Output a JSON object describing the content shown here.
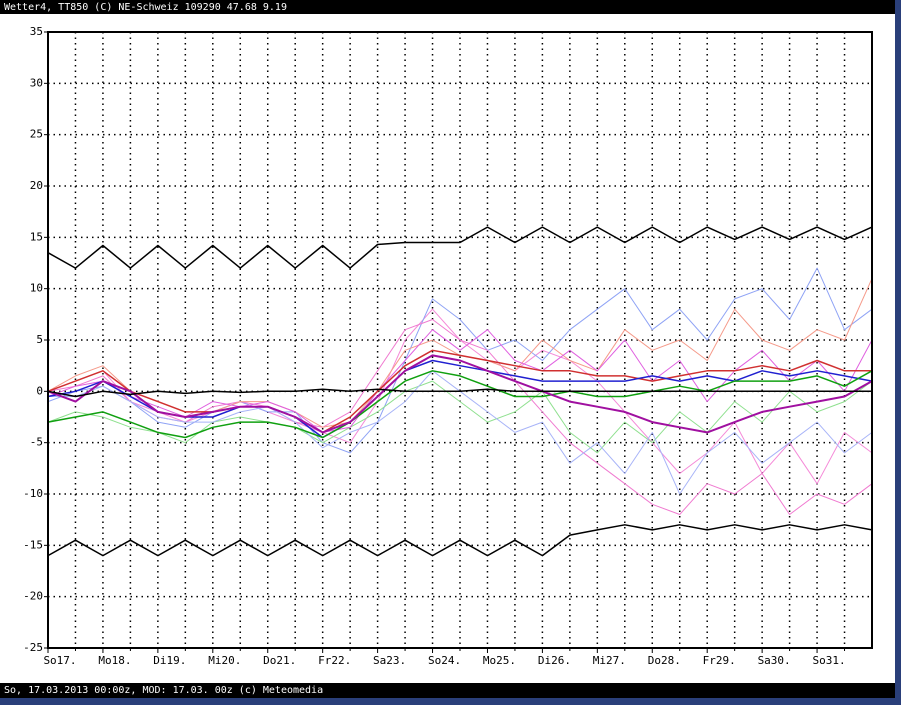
{
  "chart_data": {
    "type": "line",
    "title": "Wetter4, TT850 (C) NE-Schweiz 109290 47.68 9.19",
    "footer": "So, 17.03.2013 00:00z, MOD: 17.03. 00z (c) Meteomedia",
    "x": [
      0,
      0.5,
      1,
      1.5,
      2,
      2.5,
      3,
      3.5,
      4,
      4.5,
      5,
      5.5,
      6,
      6.5,
      7,
      7.5,
      8,
      8.5,
      9,
      9.5,
      10,
      10.5,
      11,
      11.5,
      12,
      12.5,
      13,
      13.5,
      14,
      14.5,
      15
    ],
    "xlim": [
      0,
      15
    ],
    "xticks": [
      {
        "value": 0,
        "label": "So17."
      },
      {
        "value": 1,
        "label": "Mo18."
      },
      {
        "value": 2,
        "label": "Di19."
      },
      {
        "value": 3,
        "label": "Mi20."
      },
      {
        "value": 4,
        "label": "Do21."
      },
      {
        "value": 5,
        "label": "Fr22."
      },
      {
        "value": 6,
        "label": "Sa23."
      },
      {
        "value": 7,
        "label": "So24."
      },
      {
        "value": 8,
        "label": "Mo25."
      },
      {
        "value": 9,
        "label": "Di26."
      },
      {
        "value": 10,
        "label": "Mi27."
      },
      {
        "value": 11,
        "label": "Do28."
      },
      {
        "value": 12,
        "label": "Fr29."
      },
      {
        "value": 13,
        "label": "Sa30."
      },
      {
        "value": 14,
        "label": "So31."
      }
    ],
    "xminorticks": [
      0.5,
      1.5,
      2.5,
      3.5,
      4.5,
      5.5,
      6.5,
      7.5,
      8.5,
      9.5,
      10.5,
      11.5,
      12.5,
      13.5,
      14.5
    ],
    "ylim": [
      -25,
      35
    ],
    "yticks": [
      -25,
      -20,
      -15,
      -10,
      -5,
      0,
      5,
      10,
      15,
      20,
      25,
      30,
      35
    ],
    "grid": true,
    "series": [
      {
        "color": "#f58ad8",
        "width": 1,
        "values": [
          0,
          1,
          2,
          -1,
          -2,
          -3,
          -2,
          -1,
          -2,
          -3,
          -4,
          -5,
          -1,
          5,
          8,
          5,
          3,
          2,
          4,
          3,
          1,
          -2,
          -5,
          -8,
          -6,
          -3,
          -8,
          -5,
          -9,
          -4,
          -6
        ]
      },
      {
        "color": "#8fa3f5",
        "width": 1,
        "values": [
          -1,
          0,
          0.5,
          -1,
          -3,
          -3.5,
          -2,
          -1,
          -2,
          -2,
          -5,
          -6,
          -3,
          3,
          9,
          7,
          4,
          5,
          3,
          6,
          8,
          10,
          6,
          8,
          5,
          9,
          10,
          7,
          12,
          6,
          8
        ]
      },
      {
        "color": "#f07ad0",
        "width": 1,
        "values": [
          0,
          0.5,
          1.5,
          -1,
          -2.5,
          -3,
          -1.5,
          -1,
          -1.5,
          -3,
          -3.5,
          -2,
          2,
          6,
          7,
          5,
          4,
          1,
          -2,
          -5,
          -7,
          -9,
          -11,
          -12,
          -9,
          -10,
          -8,
          -12,
          -10,
          -11,
          -9
        ]
      },
      {
        "color": "#8fe08f",
        "width": 1,
        "values": [
          -3,
          -2,
          -2.5,
          -3.5,
          -4,
          -5,
          -3,
          -2.5,
          -3,
          -3.5,
          -5,
          -3.5,
          -2,
          0,
          1,
          -1,
          -3,
          -2,
          0,
          -4,
          -6,
          -3,
          -5,
          -2,
          -4,
          -1,
          -3,
          0,
          -2,
          -1,
          1
        ]
      },
      {
        "color": "#f59a8a",
        "width": 1,
        "values": [
          0,
          1.5,
          2.5,
          0,
          -1,
          -2,
          -2,
          -1,
          -1,
          -2,
          -3.5,
          -3,
          0,
          4,
          5,
          3.5,
          3,
          2,
          5,
          3,
          2,
          6,
          4,
          5,
          3,
          8,
          5,
          4,
          6,
          5,
          11
        ]
      },
      {
        "color": "#a8b4f8",
        "width": 1,
        "values": [
          -0.5,
          -0.5,
          0.5,
          -1,
          -2.5,
          -3,
          -3,
          -2,
          -1.5,
          -3,
          -5.5,
          -4,
          -3,
          -1,
          2,
          0,
          -2,
          -4,
          -3,
          -7,
          -5,
          -8,
          -4,
          -10,
          -6,
          -4,
          -7,
          -5,
          -3,
          -6,
          -4
        ]
      },
      {
        "color": "#e060e0",
        "width": 1,
        "values": [
          -0.5,
          0.5,
          1,
          -0.5,
          -1.5,
          -2.5,
          -1,
          -1.5,
          -1,
          -2,
          -4,
          -3.5,
          0,
          3,
          6,
          4,
          6,
          3,
          2,
          4,
          2,
          5,
          1,
          3,
          -1,
          2,
          4,
          1,
          3,
          0,
          5
        ]
      },
      {
        "color": "#d03030",
        "width": 1.5,
        "values": [
          0,
          1,
          2,
          0,
          -1,
          -2,
          -2,
          -1.5,
          -1.5,
          -2.5,
          -4,
          -2.5,
          0,
          2.5,
          4,
          3.5,
          3,
          2.5,
          2,
          2,
          1.5,
          1.5,
          1,
          1.5,
          2,
          2,
          2.5,
          2,
          3,
          2,
          2
        ]
      },
      {
        "color": "#2020d0",
        "width": 1.5,
        "values": [
          -0.5,
          0,
          1,
          -0.5,
          -2,
          -2.5,
          -2.5,
          -1.5,
          -1.5,
          -2.5,
          -4.5,
          -3,
          -0.5,
          2,
          3,
          2.5,
          2,
          1.5,
          1,
          1,
          1,
          1,
          1.5,
          1,
          1.5,
          1,
          2,
          1.5,
          2,
          1.5,
          1
        ]
      },
      {
        "color": "#10a010",
        "width": 1.5,
        "values": [
          -3,
          -2.5,
          -2,
          -3,
          -4,
          -4.5,
          -3.5,
          -3,
          -3,
          -3.5,
          -4.5,
          -3,
          -1,
          1,
          2,
          1.5,
          0.5,
          -0.5,
          -0.5,
          0,
          -0.5,
          -0.5,
          0,
          0.5,
          0,
          1,
          1,
          1,
          1.5,
          0.5,
          2
        ]
      },
      {
        "color": "#a010a0",
        "width": 2,
        "values": [
          0,
          -1,
          1,
          0,
          -2,
          -2.5,
          -2,
          -1.5,
          -1.5,
          -2.5,
          -4,
          -3,
          -0.5,
          2,
          3.5,
          3,
          2,
          1,
          0,
          -1,
          -1.5,
          -2,
          -3,
          -3.5,
          -4,
          -3,
          -2,
          -1.5,
          -1,
          -0.5,
          1
        ]
      },
      {
        "color": "#000000",
        "width": 1.5,
        "values": [
          0,
          -0.5,
          0,
          -0.3,
          0,
          -0.2,
          0,
          -0.1,
          0,
          0,
          0.2,
          0,
          0.2,
          0,
          0,
          0,
          0.2,
          0,
          0,
          0,
          0,
          0,
          0,
          0,
          0,
          0,
          0,
          0,
          0,
          0,
          0
        ]
      },
      {
        "color": "#000000",
        "width": 1.5,
        "values": [
          13.5,
          12,
          14.2,
          12,
          14.2,
          12,
          14.2,
          12,
          14.2,
          12,
          14.2,
          12,
          14.3,
          14.5,
          14.5,
          14.5,
          16,
          14.5,
          16,
          14.5,
          16,
          14.5,
          16,
          14.5,
          16,
          14.8,
          16,
          14.8,
          16,
          14.8,
          16
        ]
      },
      {
        "color": "#000000",
        "width": 1.5,
        "values": [
          -16,
          -14.5,
          -16,
          -14.5,
          -16,
          -14.5,
          -16,
          -14.5,
          -16,
          -14.5,
          -16,
          -14.5,
          -16,
          -14.5,
          -16,
          -14.5,
          -16,
          -14.5,
          -16,
          -14,
          -13.5,
          -13,
          -13.5,
          -13,
          -13.5,
          -13,
          -13.5,
          -13,
          -13.5,
          -13,
          -13.5
        ]
      }
    ]
  }
}
